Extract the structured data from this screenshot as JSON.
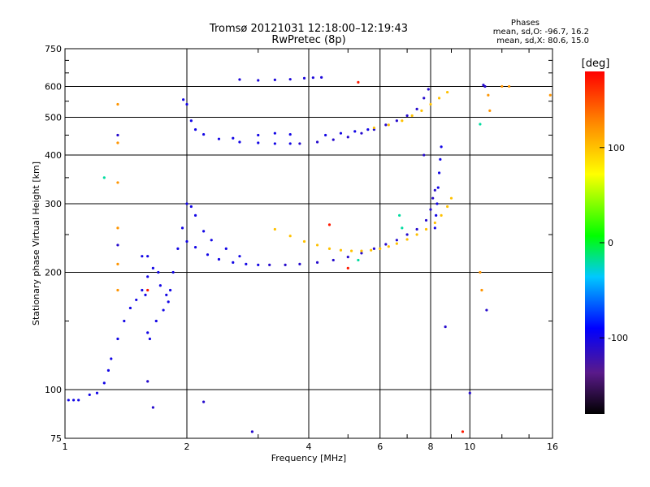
{
  "header": {
    "title": "Tromsø 20121031 12:18:00–12:19:43",
    "subtitle": "RwPretec (8p)"
  },
  "phases": {
    "heading": "Phases",
    "line_o": "mean, sd,O: -96.7, 16.2",
    "line_x": "mean, sd,X: 80.6, 15.0"
  },
  "colorbar": {
    "label": "[deg]",
    "ticks": [
      "100",
      "0",
      "-100"
    ],
    "tick_values": [
      100,
      0,
      -100
    ],
    "range": [
      -180,
      180
    ]
  },
  "chart_data": {
    "type": "scatter",
    "xlabel": "Frequency [MHz]",
    "ylabel": "Stationary phase Virtual Height [km]",
    "x_scale": "log",
    "y_scale": "log",
    "xlim": [
      1,
      16
    ],
    "ylim": [
      75,
      750
    ],
    "x_ticks": [
      1,
      2,
      4,
      6,
      8,
      10,
      16
    ],
    "x_tick_labels": [
      "1",
      "2",
      "4",
      "6",
      "8",
      "10",
      "16"
    ],
    "y_ticks": [
      75,
      100,
      200,
      300,
      400,
      500,
      600,
      750
    ],
    "y_tick_labels": [
      "75",
      "100",
      "200",
      "300",
      "400",
      "500",
      "600",
      "750"
    ],
    "grid": true,
    "series": [
      {
        "phase": -100,
        "points": [
          [
            1.02,
            94
          ],
          [
            1.05,
            94
          ],
          [
            1.08,
            94
          ],
          [
            1.15,
            97
          ],
          [
            1.2,
            98
          ],
          [
            1.25,
            104
          ],
          [
            1.28,
            112
          ],
          [
            1.3,
            120
          ],
          [
            1.35,
            135
          ],
          [
            1.4,
            150
          ],
          [
            1.45,
            162
          ],
          [
            1.5,
            170
          ],
          [
            1.55,
            180
          ],
          [
            1.6,
            195
          ],
          [
            1.65,
            205
          ],
          [
            1.7,
            200
          ],
          [
            1.72,
            185
          ],
          [
            1.78,
            175
          ],
          [
            1.82,
            180
          ],
          [
            1.85,
            200
          ],
          [
            1.9,
            230
          ],
          [
            1.95,
            260
          ],
          [
            2.0,
            300
          ],
          [
            1.6,
            140
          ],
          [
            1.62,
            135
          ],
          [
            1.68,
            150
          ],
          [
            1.75,
            160
          ],
          [
            1.8,
            168
          ],
          [
            1.55,
            220
          ],
          [
            1.6,
            220
          ],
          [
            1.58,
            175
          ]
        ]
      },
      {
        "phase": -100,
        "points": [
          [
            2.0,
            240
          ],
          [
            2.1,
            232
          ],
          [
            2.25,
            222
          ],
          [
            2.4,
            216
          ],
          [
            2.6,
            212
          ],
          [
            2.8,
            210
          ],
          [
            3.0,
            209
          ],
          [
            2.05,
            295
          ],
          [
            2.1,
            280
          ],
          [
            2.2,
            255
          ],
          [
            2.3,
            242
          ],
          [
            2.5,
            230
          ],
          [
            2.7,
            220
          ]
        ]
      },
      {
        "phase": -110,
        "points": [
          [
            3.2,
            209
          ],
          [
            3.5,
            209
          ],
          [
            3.8,
            210
          ],
          [
            4.2,
            212
          ],
          [
            4.6,
            215
          ],
          [
            5.0,
            219
          ],
          [
            5.4,
            224
          ],
          [
            5.8,
            230
          ],
          [
            6.2,
            236
          ],
          [
            6.6,
            242
          ],
          [
            7.0,
            250
          ],
          [
            7.4,
            258
          ],
          [
            7.8,
            272
          ],
          [
            8.0,
            290
          ],
          [
            8.1,
            310
          ],
          [
            8.2,
            325
          ]
        ]
      },
      {
        "phase": -100,
        "points": [
          [
            1.96,
            555
          ],
          [
            2.0,
            540
          ],
          [
            2.05,
            490
          ],
          [
            2.1,
            465
          ],
          [
            2.2,
            452
          ],
          [
            2.4,
            440
          ],
          [
            2.7,
            432
          ],
          [
            3.0,
            430
          ],
          [
            3.3,
            428
          ],
          [
            3.6,
            428
          ]
        ]
      },
      {
        "phase": -110,
        "points": [
          [
            3.8,
            428
          ],
          [
            4.2,
            432
          ],
          [
            4.6,
            438
          ],
          [
            5.0,
            445
          ],
          [
            5.4,
            455
          ],
          [
            5.8,
            465
          ],
          [
            6.2,
            478
          ],
          [
            6.6,
            490
          ],
          [
            7.0,
            505
          ],
          [
            7.4,
            525
          ],
          [
            7.7,
            560
          ],
          [
            7.9,
            590
          ]
        ]
      },
      {
        "phase": -100,
        "points": [
          [
            2.6,
            442
          ],
          [
            3.0,
            450
          ],
          [
            3.3,
            455
          ],
          [
            3.6,
            452
          ],
          [
            4.4,
            450
          ],
          [
            4.8,
            455
          ],
          [
            5.2,
            460
          ],
          [
            5.6,
            465
          ]
        ]
      },
      {
        "phase": -100,
        "points": [
          [
            8.5,
            420
          ],
          [
            8.45,
            390
          ],
          [
            8.4,
            360
          ],
          [
            8.35,
            330
          ],
          [
            8.3,
            300
          ],
          [
            8.25,
            280
          ],
          [
            8.2,
            260
          ]
        ]
      },
      {
        "phase": 100,
        "points": [
          [
            3.3,
            258
          ],
          [
            3.6,
            248
          ],
          [
            3.9,
            240
          ],
          [
            4.2,
            235
          ],
          [
            4.5,
            230
          ],
          [
            4.8,
            228
          ],
          [
            5.1,
            227
          ],
          [
            5.4,
            227
          ],
          [
            5.7,
            228
          ],
          [
            6.0,
            230
          ],
          [
            6.3,
            233
          ],
          [
            6.6,
            237
          ],
          [
            7.0,
            243
          ],
          [
            7.4,
            250
          ],
          [
            7.8,
            258
          ],
          [
            8.2,
            268
          ],
          [
            8.5,
            280
          ],
          [
            8.8,
            295
          ],
          [
            9.0,
            310
          ]
        ]
      },
      {
        "phase": 100,
        "points": [
          [
            5.8,
            470
          ],
          [
            6.3,
            478
          ],
          [
            6.8,
            490
          ],
          [
            7.2,
            505
          ],
          [
            7.6,
            520
          ],
          [
            8.0,
            540
          ],
          [
            8.4,
            560
          ],
          [
            8.8,
            580
          ]
        ]
      },
      {
        "phase": -105,
        "points": [
          [
            2.7,
            625
          ],
          [
            3.0,
            622
          ],
          [
            3.3,
            624
          ],
          [
            3.6,
            626
          ],
          [
            3.9,
            630
          ],
          [
            4.1,
            632
          ],
          [
            4.3,
            633
          ]
        ]
      },
      {
        "phase": 120,
        "points": [
          [
            1.35,
            540
          ],
          [
            1.35,
            430
          ],
          [
            1.35,
            340
          ],
          [
            1.35,
            260
          ],
          [
            1.35,
            210
          ],
          [
            1.35,
            180
          ],
          [
            11.1,
            570
          ],
          [
            11.2,
            520
          ],
          [
            12.0,
            600
          ],
          [
            12.5,
            600
          ],
          [
            15.8,
            570
          ],
          [
            10.6,
            200
          ],
          [
            10.7,
            180
          ]
        ]
      },
      {
        "phase": -20,
        "points": [
          [
            1.25,
            350
          ],
          [
            6.7,
            280
          ],
          [
            6.8,
            260
          ],
          [
            10.6,
            480
          ],
          [
            5.3,
            215
          ]
        ]
      },
      {
        "phase": -110,
        "points": [
          [
            1.35,
            450
          ],
          [
            1.35,
            235
          ],
          [
            1.6,
            105
          ],
          [
            1.65,
            90
          ],
          [
            2.2,
            93
          ],
          [
            2.9,
            78
          ],
          [
            8.7,
            145
          ],
          [
            10.0,
            98
          ],
          [
            10.8,
            605
          ],
          [
            10.9,
            600
          ],
          [
            11.0,
            160
          ],
          [
            7.7,
            400
          ]
        ]
      },
      {
        "phase": 170,
        "points": [
          [
            9.6,
            78
          ],
          [
            5.3,
            615
          ],
          [
            4.5,
            265
          ],
          [
            5.0,
            205
          ],
          [
            1.6,
            180
          ]
        ]
      }
    ]
  }
}
